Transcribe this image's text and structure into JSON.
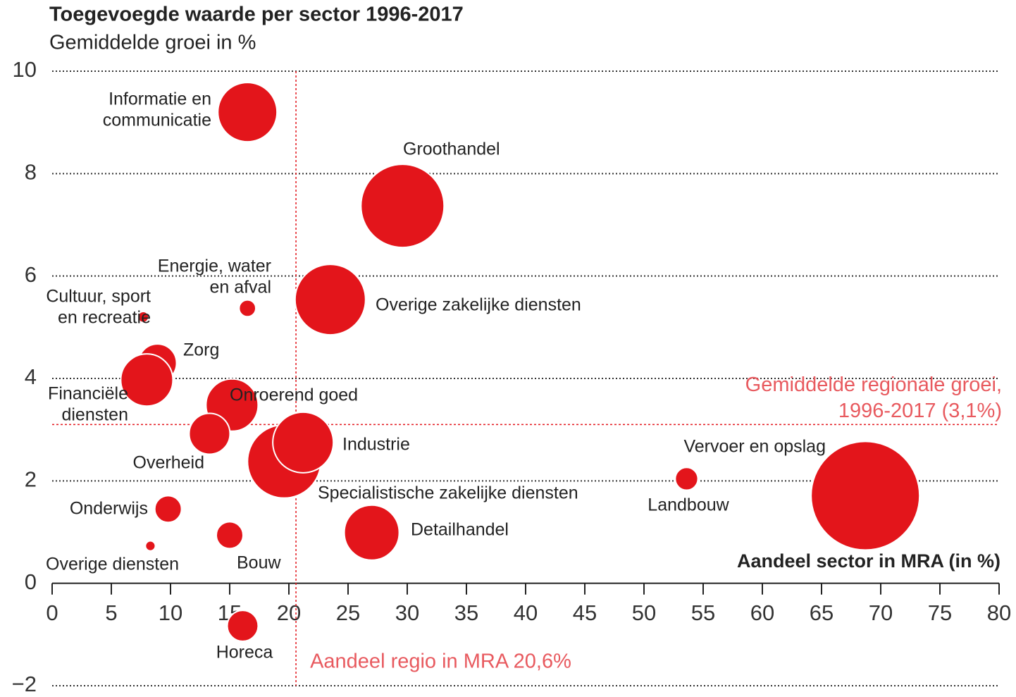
{
  "chart_data": {
    "type": "bubble",
    "title": "Toegevoegde waarde per sector 1996-2017",
    "subtitle": "Gemiddelde groei in %",
    "x_label": "Aandeel sector in MRA (in %)",
    "color": "#e3151b",
    "xlim": [
      0,
      80
    ],
    "xticks": [
      0,
      5,
      10,
      15,
      20,
      25,
      30,
      35,
      40,
      45,
      50,
      55,
      60,
      65,
      70,
      75,
      80
    ],
    "ylim": [
      -2,
      10
    ],
    "yticks": [
      {
        "value": -2,
        "label": "−2"
      },
      0,
      2,
      4,
      6,
      8,
      10
    ],
    "grid": true,
    "labels": [
      [
        "Informatie en",
        "communicatie"
      ],
      [
        "Groothandel"
      ],
      [
        "Overige zakelijke diensten"
      ],
      [
        "Energie, water",
        "en afval"
      ],
      [
        "Cultuur, sport",
        "en recreatie"
      ],
      [
        "Zorg"
      ],
      [
        "Financiële",
        "diensten"
      ],
      [
        "Onroerend goed"
      ],
      [
        "Overheid"
      ],
      [
        "Specialistische zakelijke diensten"
      ],
      [
        "Industrie"
      ],
      [
        "Onderwijs"
      ],
      [
        "Overige diensten"
      ],
      [
        "Bouw"
      ],
      [
        "Horeca"
      ],
      [
        "Detailhandel"
      ],
      [
        "Landbouw"
      ],
      [
        "Vervoer en opslag"
      ]
    ],
    "x": [
      16.5,
      29.6,
      23.5,
      16.5,
      7.7,
      8.9,
      8.0,
      15.2,
      13.3,
      19.6,
      21.2,
      9.8,
      8.3,
      15.0,
      16.1,
      27.0,
      53.6,
      68.7
    ],
    "y": [
      9.2,
      7.37,
      5.54,
      5.37,
      5.2,
      4.3,
      3.97,
      3.48,
      2.92,
      2.38,
      2.75,
      1.45,
      0.73,
      0.94,
      -0.83,
      0.99,
      2.04,
      1.71
    ],
    "sizes": [
      17.6,
      34.8,
      25,
      1.4,
      0.6,
      7.3,
      13.7,
      13.7,
      8.4,
      27,
      18.5,
      3.6,
      0.5,
      3.6,
      4.8,
      15.2,
      2.6,
      59.3
    ],
    "reference_lines": [
      {
        "axis": "y",
        "value": 3.1,
        "label": [
          "Gemiddelde regionale groei,",
          "1996-2017 (3,1%)"
        ]
      },
      {
        "axis": "x",
        "value": 20.6,
        "label": [
          "Aandeel regio in MRA 20,6%"
        ]
      }
    ]
  }
}
